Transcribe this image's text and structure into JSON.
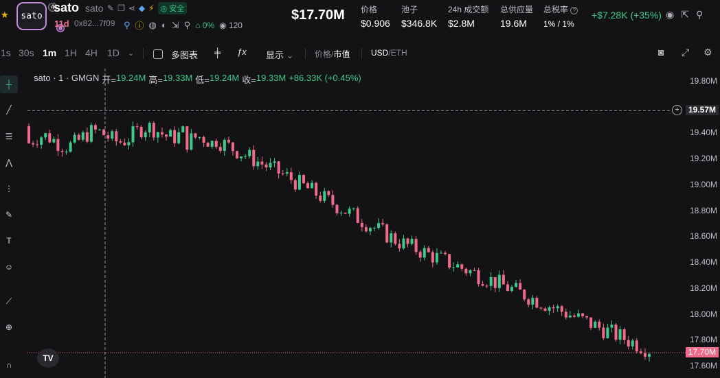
{
  "token": {
    "logo_text": "sato",
    "logo_badge": "4",
    "name": "sato",
    "name_secondary": "sato",
    "safe_label": "安全",
    "age": "11d",
    "address": "0x82...7f09",
    "holders_pct": "0%",
    "watchers": "120"
  },
  "header": {
    "market_cap": "$17.70M",
    "stats": [
      {
        "label": "价格",
        "value": "$0.906"
      },
      {
        "label": "池子",
        "value": "$346.8K"
      },
      {
        "label": "24h 成交额",
        "value": "$2.8M"
      },
      {
        "label": "总供应量",
        "value": "19.6M"
      },
      {
        "label": "总税率",
        "value": "1% / 1%"
      }
    ],
    "delta": "+$7.28K (+35%)"
  },
  "toolbar": {
    "intervals": [
      "1s",
      "30s",
      "1m",
      "1H",
      "4H",
      "1D"
    ],
    "active_interval": "1m",
    "multi_chart": "多图表",
    "display": "显示",
    "price_label": "价格",
    "mcap_label": "市值",
    "usd": "USD",
    "eth": "ETH"
  },
  "legend": {
    "title": "sato · 1 · GMGN",
    "open_label": "开=",
    "open": "19.24M",
    "high_label": "高=",
    "high": "19.33M",
    "low_label": "低=",
    "low": "19.24M",
    "close_label": "收=",
    "close": "19.33M",
    "change": "+86.33K (+0.45%)"
  },
  "chart_data": {
    "type": "candlestick",
    "ylim": [
      17.6,
      19.85
    ],
    "yticks": [
      "19.80M",
      "19.40M",
      "19.20M",
      "19.00M",
      "18.80M",
      "18.60M",
      "18.40M",
      "18.20M",
      "18.00M",
      "17.80M",
      "17.60M"
    ],
    "crosshair_price": "19.57M",
    "last_price": "17.70M",
    "crosshair_value": 19.57,
    "last_value": 17.7,
    "colors": {
      "up": "#3fc98a",
      "down": "#f06b8a"
    }
  }
}
